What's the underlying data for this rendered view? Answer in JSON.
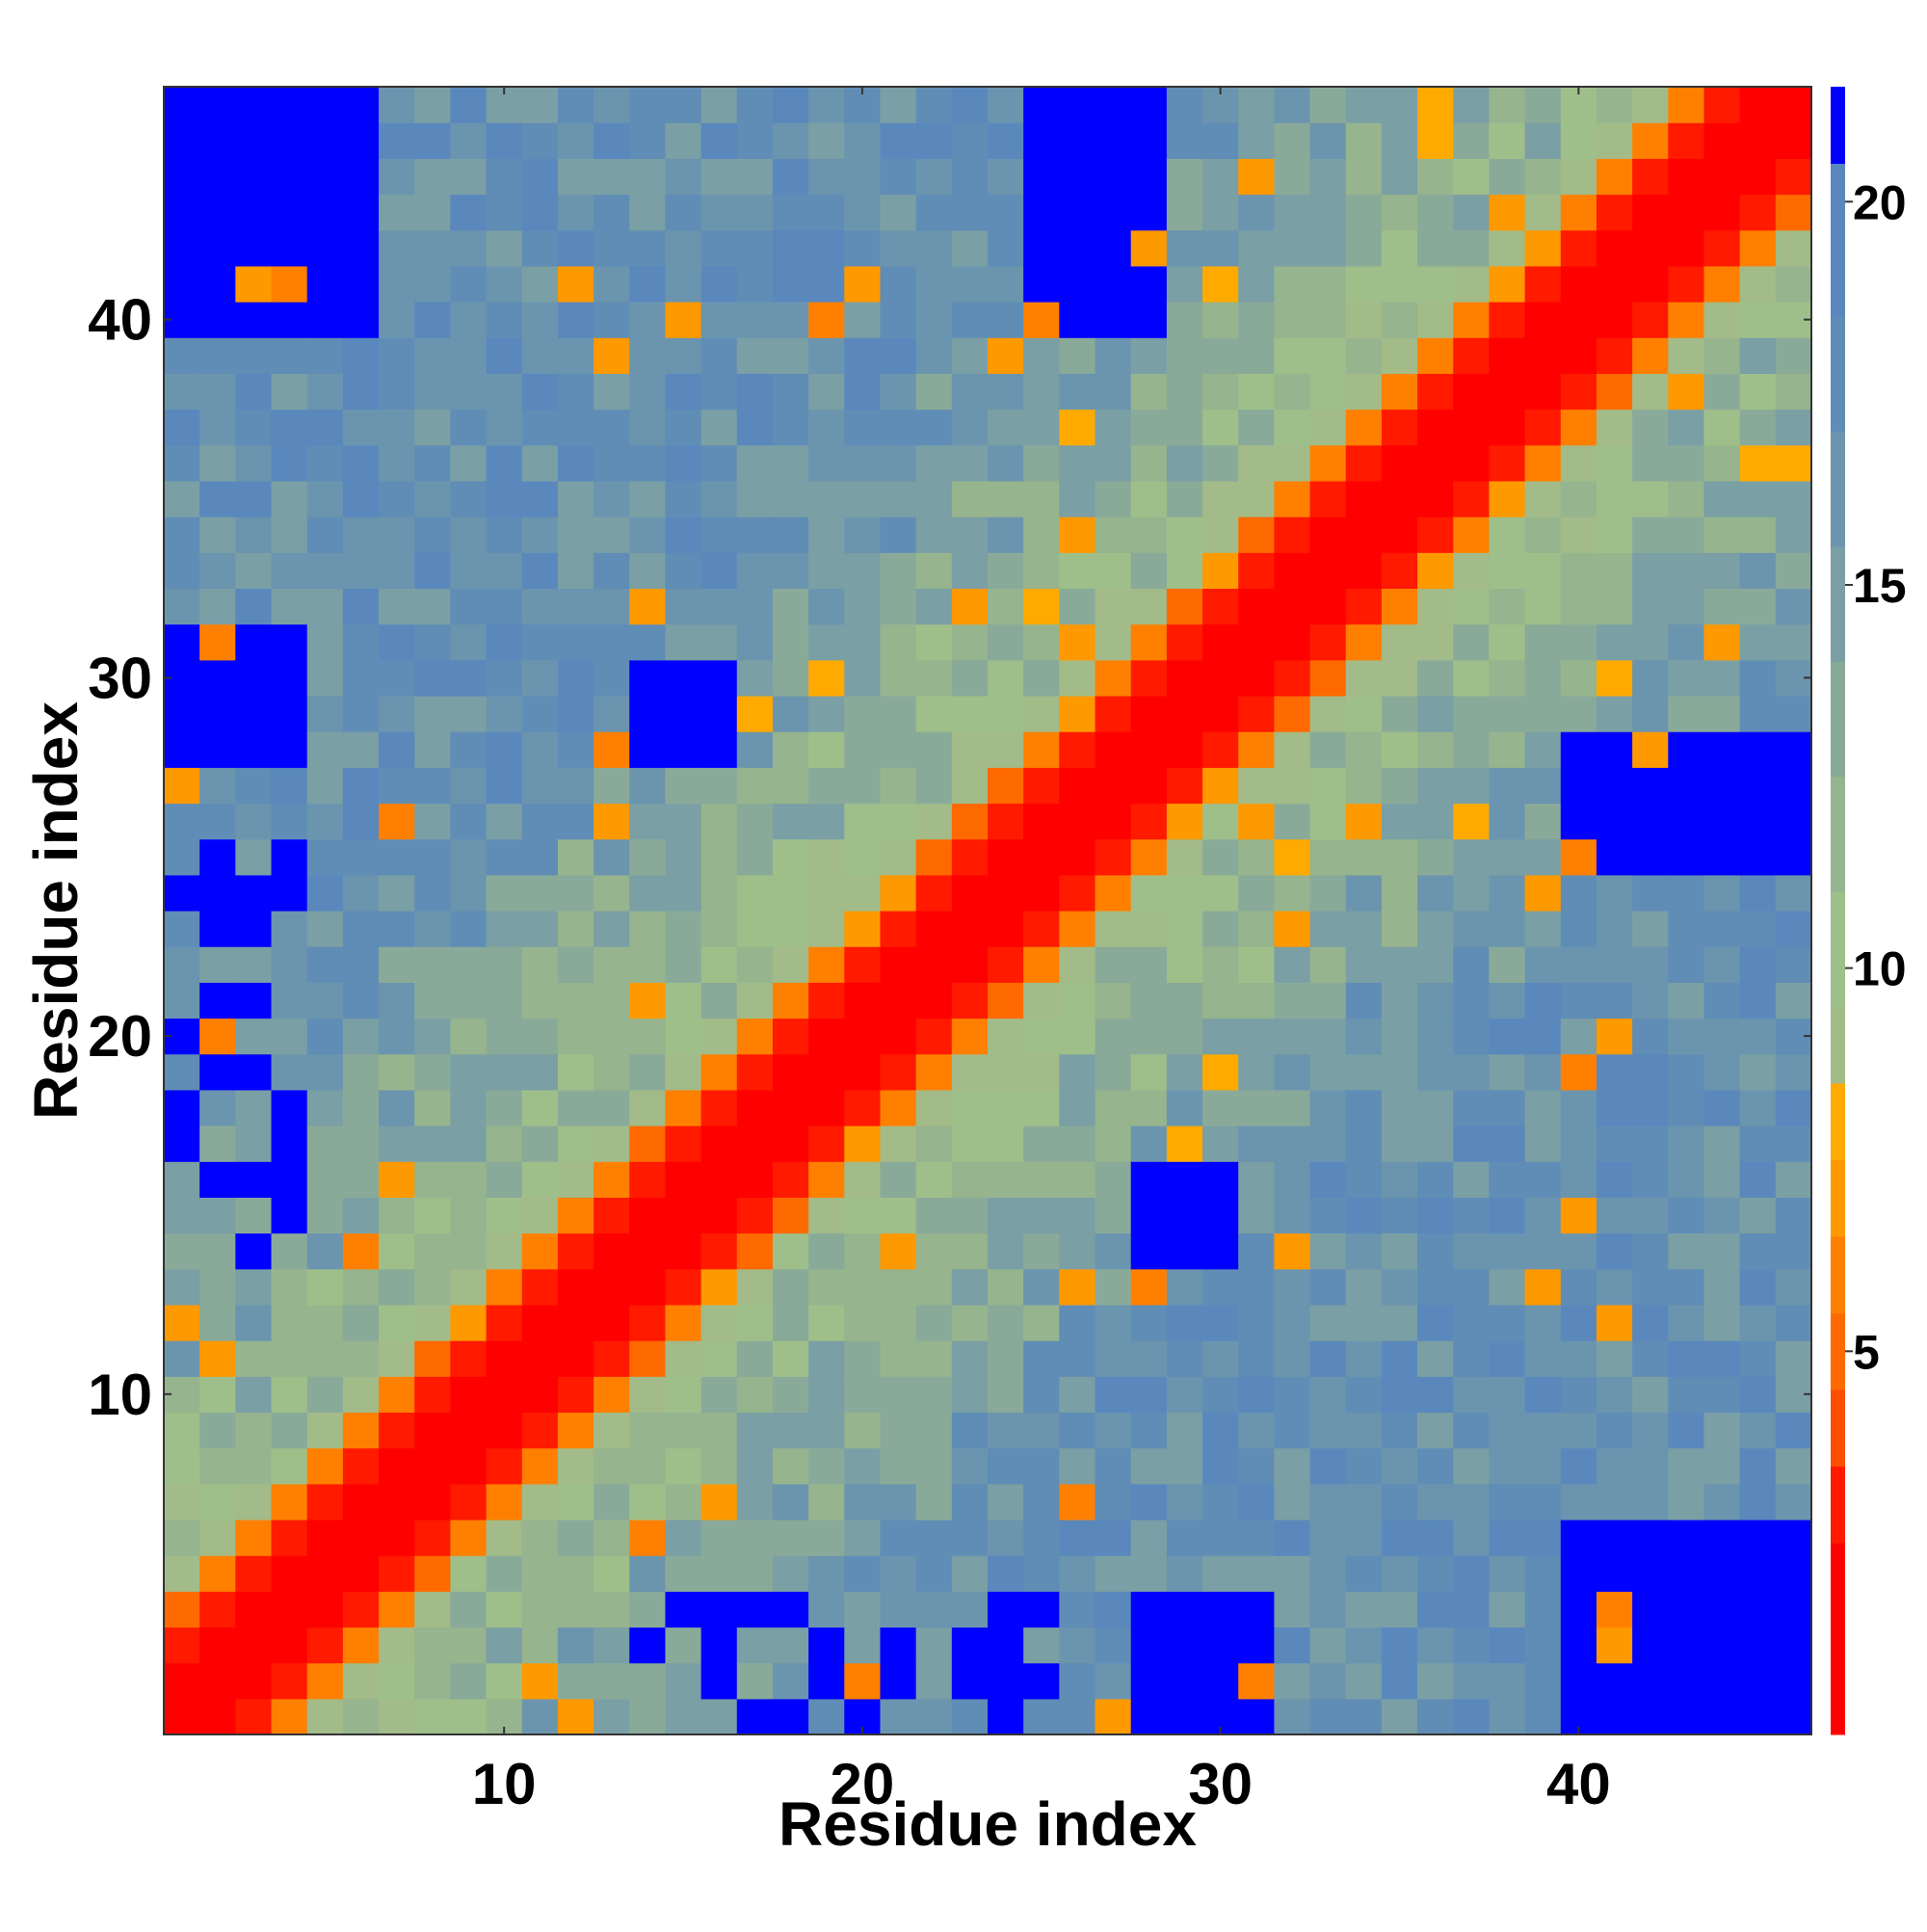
{
  "chart_data": {
    "type": "heatmap",
    "title": "",
    "xlabel": "Residue index",
    "ylabel": "Residue index",
    "n": 46,
    "x_range": [
      0.5,
      46.5
    ],
    "y_range": [
      0.5,
      46.5
    ],
    "x_ticks": [
      10,
      20,
      30,
      40
    ],
    "y_ticks": [
      10,
      20,
      30,
      40
    ],
    "colorbar": {
      "range": [
        0,
        21.5
      ],
      "ticks": [
        5,
        10,
        15,
        20
      ],
      "palette": [
        {
          "max": 2.5,
          "color": "#ff0000"
        },
        {
          "max": 3.5,
          "color": "#ff1a00"
        },
        {
          "max": 4.5,
          "color": "#ff4d00"
        },
        {
          "max": 5.5,
          "color": "#ff6a00"
        },
        {
          "max": 6.5,
          "color": "#ff8000"
        },
        {
          "max": 7.5,
          "color": "#ff9900"
        },
        {
          "max": 8.5,
          "color": "#ffaa00"
        },
        {
          "max": 9.5,
          "color": "#a2bb88"
        },
        {
          "max": 11,
          "color": "#9fbf8a"
        },
        {
          "max": 12.5,
          "color": "#96b48e"
        },
        {
          "max": 14,
          "color": "#8aaa99"
        },
        {
          "max": 15.5,
          "color": "#7a9fa5"
        },
        {
          "max": 17,
          "color": "#6b95ae"
        },
        {
          "max": 18.5,
          "color": "#608db5"
        },
        {
          "max": 20.5,
          "color": "#5a88bd"
        },
        {
          "max": 99,
          "color": "#0000ff"
        }
      ]
    },
    "values_note": "Symmetric residue distance map; diagonal values near 0, increasing with |i-j|",
    "matrix_rule": {
      "diagonal_band": [
        0,
        1,
        2
      ],
      "orange_shell": [
        3,
        4
      ],
      "far_blue_corners": true
    }
  }
}
